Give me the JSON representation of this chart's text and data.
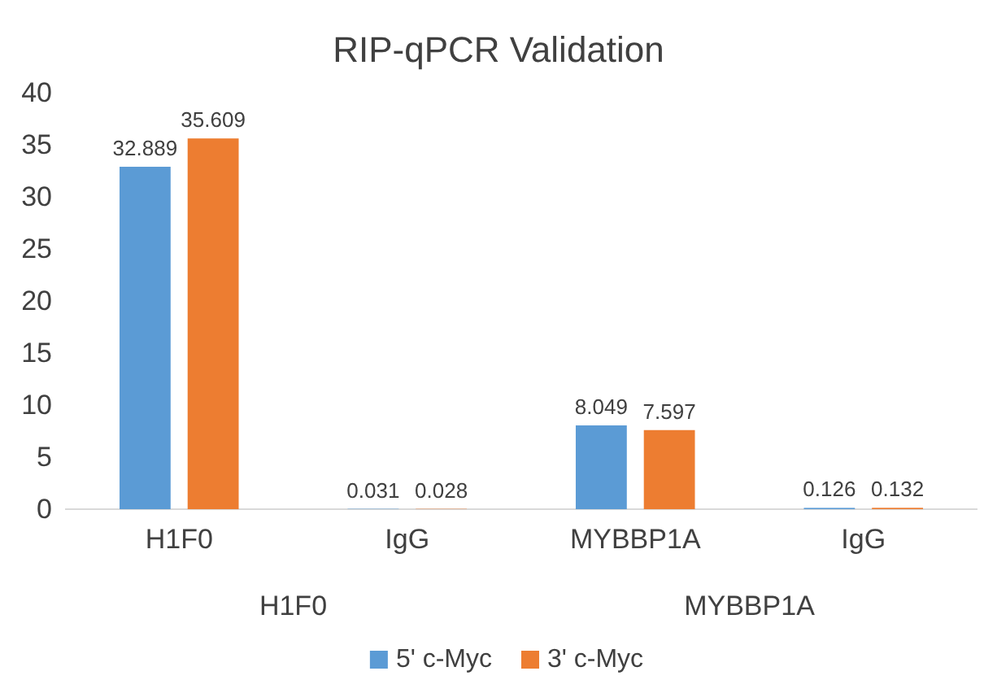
{
  "chart_data": {
    "type": "bar",
    "title": "RIP-qPCR Validation",
    "categories": [
      "H1F0",
      "IgG",
      "MYBBP1A",
      "IgG"
    ],
    "series": [
      {
        "name": "5' c-Myc",
        "color": "#5b9bd5",
        "values": [
          32.889,
          0.031,
          8.049,
          0.126
        ]
      },
      {
        "name": "3' c-Myc",
        "color": "#ed7d31",
        "values": [
          35.609,
          0.028,
          7.597,
          0.132
        ]
      }
    ],
    "ylim": [
      0,
      40
    ],
    "yticks": [
      0,
      5,
      10,
      15,
      20,
      25,
      30,
      35,
      40
    ],
    "data_labels": true,
    "legend": "bottom",
    "annotations": [
      "H1F0",
      "MYBBP1A"
    ]
  }
}
